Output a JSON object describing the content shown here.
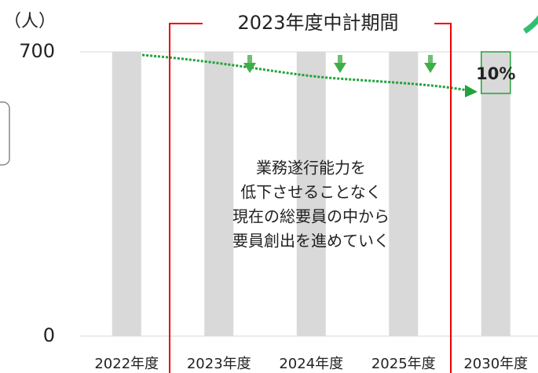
{
  "chart_data": {
    "type": "bar",
    "y_label": "（人）",
    "categories": [
      "2022年度",
      "2023年度",
      "2024年度",
      "2025年度",
      "2030年度"
    ],
    "values": [
      700,
      700,
      700,
      700,
      700
    ],
    "color": "#d9d9d9",
    "ylim": [
      0,
      700
    ],
    "yticks": [
      0,
      700
    ],
    "grid": true,
    "period_label": "2023年度中計期間",
    "note": [
      "業務遂行能力を",
      "低下させることなく",
      "現在の総要員の中から",
      "要員創出を進めていく"
    ],
    "highlight_label": "10%"
  }
}
